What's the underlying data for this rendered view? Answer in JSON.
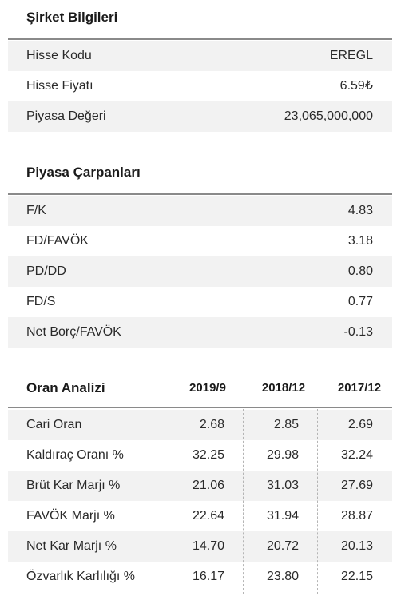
{
  "company": {
    "title": "Şirket Bilgileri",
    "rows": [
      {
        "label": "Hisse Kodu",
        "value": "EREGL"
      },
      {
        "label": "Hisse Fiyatı",
        "value": "6.59₺"
      },
      {
        "label": "Piyasa Değeri",
        "value": "23,065,000,000"
      }
    ]
  },
  "multiples": {
    "title": "Piyasa Çarpanları",
    "rows": [
      {
        "label": "F/K",
        "value": "4.83"
      },
      {
        "label": "FD/FAVÖK",
        "value": "3.18"
      },
      {
        "label": "PD/DD",
        "value": "0.80"
      },
      {
        "label": "FD/S",
        "value": "0.77"
      },
      {
        "label": "Net Borç/FAVÖK",
        "value": "-0.13"
      }
    ]
  },
  "ratios": {
    "title": "Oran Analizi",
    "columns": [
      "2019/9",
      "2018/12",
      "2017/12"
    ],
    "rows": [
      {
        "label": "Cari Oran",
        "values": [
          "2.68",
          "2.85",
          "2.69"
        ]
      },
      {
        "label": "Kaldıraç Oranı %",
        "values": [
          "32.25",
          "29.98",
          "32.24"
        ]
      },
      {
        "label": "Brüt Kar Marjı %",
        "values": [
          "21.06",
          "31.03",
          "27.69"
        ]
      },
      {
        "label": "FAVÖK Marjı %",
        "values": [
          "22.64",
          "31.94",
          "28.87"
        ]
      },
      {
        "label": "Net Kar Marjı %",
        "values": [
          "14.70",
          "20.72",
          "20.13"
        ]
      },
      {
        "label": "Özvarlık Karlılığı %",
        "values": [
          "16.17",
          "23.80",
          "22.15"
        ]
      }
    ]
  }
}
